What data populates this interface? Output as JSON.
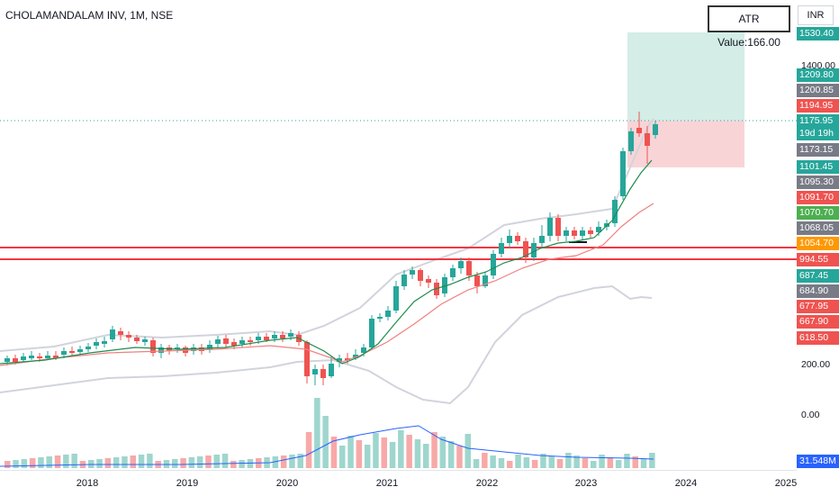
{
  "header": {
    "title": "CHOLAMANDALAM INV, 1M, NSE"
  },
  "atr": {
    "label": "ATR Value:166.00"
  },
  "currency": {
    "label": "INR"
  },
  "colors": {
    "up": "#26a69a",
    "down": "#ef5350",
    "sma": "#1e8c4e",
    "ema": "#f08080",
    "bands": "#d1d4dc",
    "volume_ma": "#2962ff",
    "resistance": "#f23645",
    "profit_zone": "#d4ede7",
    "loss_zone": "#f9d4d7"
  },
  "chart_data": {
    "type": "candlestick",
    "y_ticks": [
      "1400.00",
      "200.00",
      "0.00"
    ],
    "x_ticks": [
      "2018",
      "2019",
      "2020",
      "2021",
      "2022",
      "2023",
      "2024",
      "2025"
    ],
    "price_labels": [
      {
        "text": "1530.40",
        "color": "#26a69a"
      },
      {
        "text": "1209.80",
        "color": "#26a69a"
      },
      {
        "text": "1200.85",
        "color": "#787b86"
      },
      {
        "text": "1194.95",
        "color": "#ef5350"
      },
      {
        "text": "1175.95",
        "color": "#26a69a"
      },
      {
        "text": "19d 19h",
        "color": "#26a69a"
      },
      {
        "text": "1173.15",
        "color": "#787b86"
      },
      {
        "text": "1101.45",
        "color": "#26a69a"
      },
      {
        "text": "1095.30",
        "color": "#787b86"
      },
      {
        "text": "1091.70",
        "color": "#ef5350"
      },
      {
        "text": "1070.70",
        "color": "#4caf50"
      },
      {
        "text": "1068.05",
        "color": "#787b86"
      },
      {
        "text": "1054.70",
        "color": "#ff9800"
      },
      {
        "text": "994.55",
        "color": "#ef5350"
      },
      {
        "text": "687.45",
        "color": "#26a69a"
      },
      {
        "text": "684.90",
        "color": "#787b86"
      },
      {
        "text": "677.95",
        "color": "#ef5350"
      },
      {
        "text": "667.90",
        "color": "#ef5350"
      },
      {
        "text": "618.50",
        "color": "#ef5350"
      },
      {
        "text": "31.548M",
        "color": "#2962ff"
      }
    ]
  }
}
